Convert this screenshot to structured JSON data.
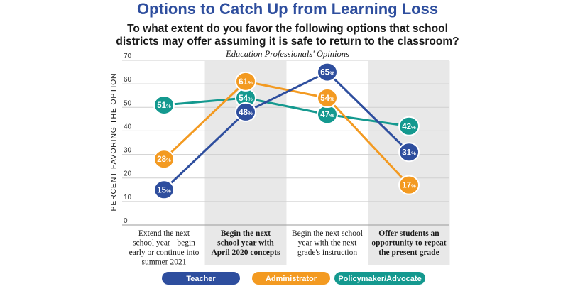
{
  "chart_data": {
    "type": "line",
    "title": "Options to Catch Up from Learning Loss",
    "subtitle_lines": [
      "To what extent do you favor the following options that school",
      "districts may offer assuming it is safe to return to the classroom?"
    ],
    "caption": "Education Professionals' Opinions",
    "ylabel": "PERCENT FAVORING THE OPTION",
    "ylim": [
      0,
      70
    ],
    "yticks": [
      0,
      10,
      20,
      30,
      40,
      50,
      60,
      70
    ],
    "categories": [
      [
        "Extend the next",
        "school year - begin",
        "early or continue into",
        "summer 2021"
      ],
      [
        "Begin the next",
        "school year with",
        "April 2020 concepts"
      ],
      [
        "Begin the next school",
        "year with the next",
        "grade's instruction"
      ],
      [
        "Offer students an",
        "opportunity to repeat",
        "the present grade"
      ]
    ],
    "category_bold": [
      false,
      true,
      false,
      true
    ],
    "shaded_categories": [
      1,
      3
    ],
    "value_suffix": "%",
    "series": [
      {
        "name": "Teacher",
        "color": "#2e4e9e",
        "values": [
          15,
          48,
          65,
          31
        ]
      },
      {
        "name": "Administrator",
        "color": "#f39a21",
        "values": [
          28,
          61,
          54,
          17
        ]
      },
      {
        "name": "Policymaker/Advocate",
        "color": "#14998f",
        "values": [
          51,
          54,
          47,
          42
        ]
      }
    ],
    "legend_position": "bottom"
  }
}
